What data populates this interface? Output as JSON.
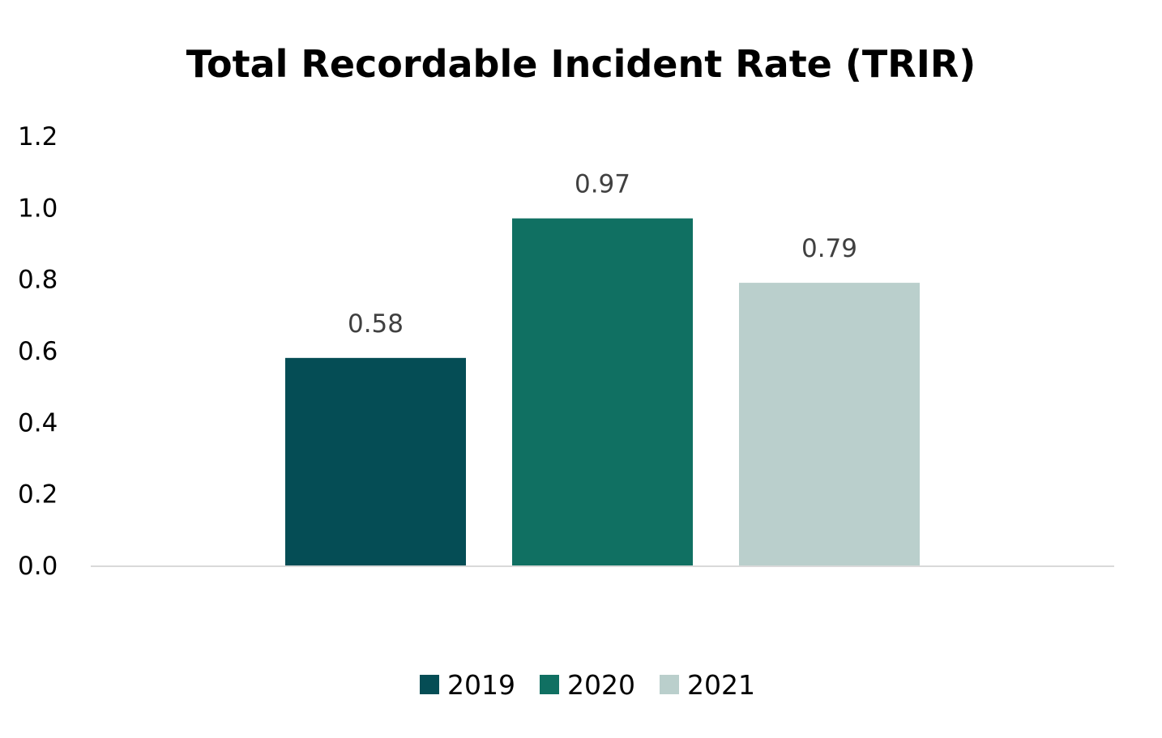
{
  "chart_data": {
    "type": "bar",
    "title": "Total Recordable Incident Rate (TRIR)",
    "xlabel": "",
    "ylabel": "",
    "ylim": [
      0,
      1.2
    ],
    "yticks": [
      "0.0",
      "0.2",
      "0.4",
      "0.6",
      "0.8",
      "1.0",
      "1.2"
    ],
    "grid": false,
    "legend_position": "bottom",
    "series": [
      {
        "name": "2019",
        "value": 0.58,
        "label": "0.58",
        "color": "#054D55"
      },
      {
        "name": "2020",
        "value": 0.97,
        "label": "0.97",
        "color": "#107062"
      },
      {
        "name": "2021",
        "value": 0.79,
        "label": "0.79",
        "color": "#BACFCC"
      }
    ]
  }
}
